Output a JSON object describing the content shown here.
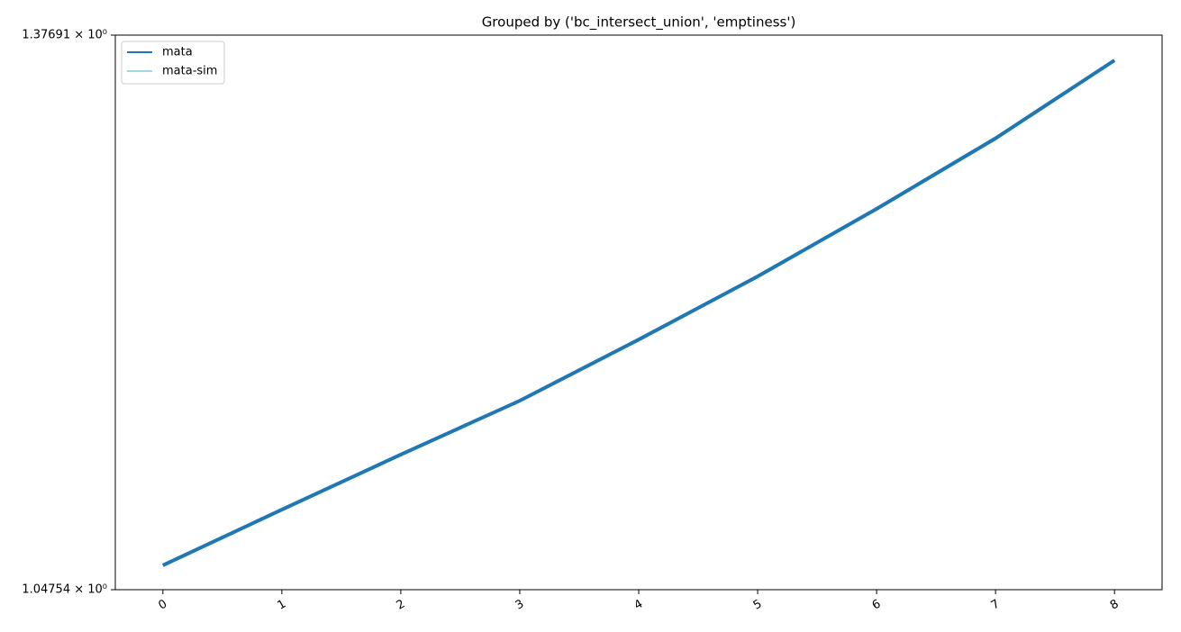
{
  "chart_data": {
    "type": "line",
    "title": "Grouped by ('bc_intersect_union', 'emptiness')",
    "x": [
      0,
      1,
      2,
      3,
      4,
      5,
      6,
      7,
      8
    ],
    "series": [
      {
        "name": "mata",
        "color": "#1f77b4",
        "values": [
          1.0602,
          1.0897,
          1.1197,
          1.1498,
          1.185,
          1.2225,
          1.2639,
          1.3086,
          1.3599
        ]
      },
      {
        "name": "mata-sim",
        "color": "#9edae5",
        "values": [
          1.0602,
          1.0897,
          1.1197,
          1.1498,
          1.185,
          1.2225,
          1.2639,
          1.3086,
          1.3599
        ]
      }
    ],
    "xlim": [
      -0.4,
      8.4
    ],
    "xticks": [
      0,
      1,
      2,
      3,
      4,
      5,
      6,
      7,
      8
    ],
    "ylim": [
      1.04754,
      1.37691
    ],
    "yticks": [
      {
        "value": 1.04754,
        "label": "1.04754 × 10⁰"
      },
      {
        "value": 1.37691,
        "label": "1.37691 × 10⁰"
      }
    ],
    "log_y": true,
    "legend": "upper left"
  }
}
